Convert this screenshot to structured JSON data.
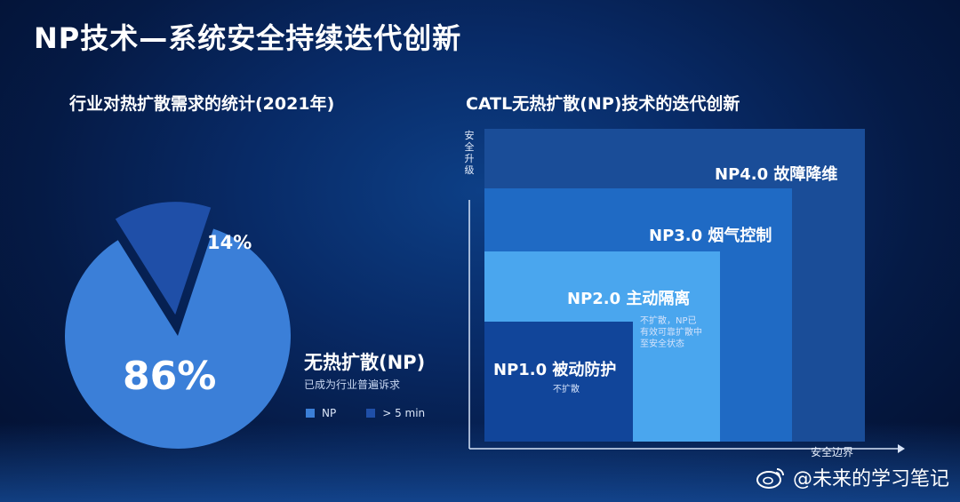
{
  "title": "NP技术—系统安全持续迭代创新",
  "chart_data": [
    {
      "type": "pie",
      "title": "行业对热扩散需求的统计(2021年)",
      "slices": [
        {
          "name": "NP",
          "value": 86,
          "label": "86%",
          "color": "#3b7fd8"
        },
        {
          "name": "> 5 min",
          "value": 14,
          "label": "14%",
          "color": "#1f4fa8"
        }
      ],
      "annotation_title": "无热扩散(NP)",
      "annotation_text": "已成为行业普遍诉求",
      "legend": [
        "NP",
        "> 5 min"
      ],
      "legend_position": "bottom"
    },
    {
      "type": "diagram",
      "title": "CATL无热扩散(NP)技术的迭代创新",
      "ylabel": "安全升级",
      "xlabel": "安全边界",
      "steps": [
        {
          "label": "NP1.0  被动防护",
          "desc": "不扩散",
          "level": 1,
          "color": "#11459a"
        },
        {
          "label": "NP2.0  主动隔离",
          "desc": "不扩散，NP已\n有效可靠扩散中\n至安全状态",
          "level": 2,
          "color": "#4aa6ee"
        },
        {
          "label": "NP3.0  烟气控制",
          "desc": "",
          "level": 3,
          "color": "#1f6ac4"
        },
        {
          "label": "NP4.0  故障降维",
          "desc": "",
          "level": 4,
          "color": "#1a4d98"
        }
      ]
    }
  ],
  "watermark": "@未来的学习笔记"
}
